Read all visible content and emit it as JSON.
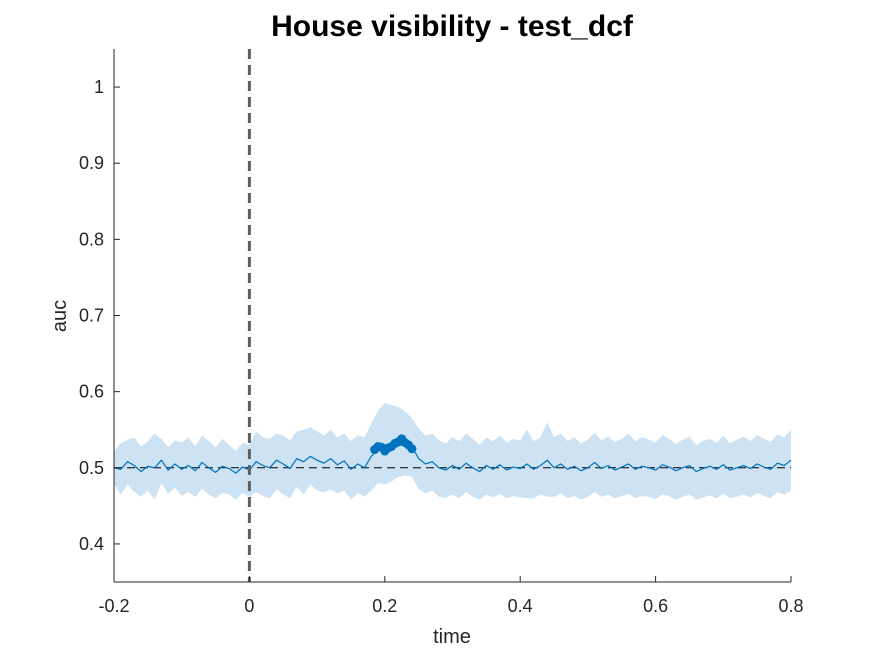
{
  "chart_data": {
    "type": "line",
    "title": "House visibility - test_dcf",
    "xlabel": "time",
    "ylabel": "auc",
    "xlim": [
      -0.2,
      0.8
    ],
    "ylim": [
      0.35,
      1.05
    ],
    "xticks": [
      -0.2,
      0,
      0.2,
      0.4,
      0.6,
      0.8
    ],
    "xtick_labels": [
      "-0.2",
      "0",
      "0.2",
      "0.4",
      "0.6",
      "0.8"
    ],
    "yticks": [
      0.4,
      0.5,
      0.6,
      0.7,
      0.8,
      0.9,
      1
    ],
    "ytick_labels": [
      "0.4",
      "0.5",
      "0.6",
      "0.7",
      "0.8",
      "0.9",
      "1"
    ],
    "grid": false,
    "chance_level": 0.5,
    "onset_time": 0,
    "colors": {
      "line": "#0072BD",
      "band": "#cde2f2",
      "onset": "#606060",
      "chance": "#000000",
      "axis": "#262626"
    },
    "series": [
      {
        "name": "auc mean",
        "x": [
          -0.2,
          -0.19,
          -0.18,
          -0.17,
          -0.16,
          -0.15,
          -0.14,
          -0.13,
          -0.12,
          -0.11,
          -0.1,
          -0.09,
          -0.08,
          -0.07,
          -0.06,
          -0.05,
          -0.04,
          -0.03,
          -0.02,
          -0.01,
          0,
          0.01,
          0.02,
          0.03,
          0.04,
          0.05,
          0.06,
          0.07,
          0.08,
          0.09,
          0.1,
          0.11,
          0.12,
          0.13,
          0.14,
          0.15,
          0.16,
          0.17,
          0.18,
          0.19,
          0.2,
          0.21,
          0.22,
          0.23,
          0.24,
          0.25,
          0.26,
          0.27,
          0.28,
          0.29,
          0.3,
          0.31,
          0.32,
          0.33,
          0.34,
          0.35,
          0.36,
          0.37,
          0.38,
          0.39,
          0.4,
          0.41,
          0.42,
          0.43,
          0.44,
          0.45,
          0.46,
          0.47,
          0.48,
          0.49,
          0.5,
          0.51,
          0.52,
          0.53,
          0.54,
          0.55,
          0.56,
          0.57,
          0.58,
          0.59,
          0.6,
          0.61,
          0.62,
          0.63,
          0.64,
          0.65,
          0.66,
          0.67,
          0.68,
          0.69,
          0.7,
          0.71,
          0.72,
          0.73,
          0.74,
          0.75,
          0.76,
          0.77,
          0.78,
          0.79,
          0.8
        ],
        "y": [
          0.5,
          0.498,
          0.508,
          0.503,
          0.495,
          0.502,
          0.5,
          0.51,
          0.497,
          0.505,
          0.498,
          0.503,
          0.496,
          0.507,
          0.5,
          0.494,
          0.502,
          0.499,
          0.493,
          0.501,
          0.497,
          0.508,
          0.503,
          0.5,
          0.51,
          0.505,
          0.499,
          0.512,
          0.508,
          0.515,
          0.51,
          0.506,
          0.512,
          0.504,
          0.509,
          0.498,
          0.505,
          0.5,
          0.515,
          0.525,
          0.528,
          0.53,
          0.535,
          0.532,
          0.528,
          0.512,
          0.505,
          0.508,
          0.5,
          0.497,
          0.503,
          0.498,
          0.506,
          0.5,
          0.495,
          0.503,
          0.498,
          0.504,
          0.497,
          0.501,
          0.499,
          0.505,
          0.498,
          0.503,
          0.51,
          0.5,
          0.505,
          0.498,
          0.502,
          0.496,
          0.5,
          0.507,
          0.499,
          0.503,
          0.497,
          0.501,
          0.505,
          0.498,
          0.502,
          0.5,
          0.497,
          0.504,
          0.501,
          0.496,
          0.5,
          0.503,
          0.495,
          0.499,
          0.502,
          0.498,
          0.504,
          0.497,
          0.5,
          0.503,
          0.499,
          0.505,
          0.501,
          0.498,
          0.506,
          0.503,
          0.51
        ]
      },
      {
        "name": "band upper",
        "x": [
          -0.2,
          -0.19,
          -0.18,
          -0.17,
          -0.16,
          -0.15,
          -0.14,
          -0.13,
          -0.12,
          -0.11,
          -0.1,
          -0.09,
          -0.08,
          -0.07,
          -0.06,
          -0.05,
          -0.04,
          -0.03,
          -0.02,
          -0.01,
          0,
          0.01,
          0.02,
          0.03,
          0.04,
          0.05,
          0.06,
          0.07,
          0.08,
          0.09,
          0.1,
          0.11,
          0.12,
          0.13,
          0.14,
          0.15,
          0.16,
          0.17,
          0.18,
          0.19,
          0.2,
          0.21,
          0.22,
          0.23,
          0.24,
          0.25,
          0.26,
          0.27,
          0.28,
          0.29,
          0.3,
          0.31,
          0.32,
          0.33,
          0.34,
          0.35,
          0.36,
          0.37,
          0.38,
          0.39,
          0.4,
          0.41,
          0.42,
          0.43,
          0.44,
          0.45,
          0.46,
          0.47,
          0.48,
          0.49,
          0.5,
          0.51,
          0.52,
          0.53,
          0.54,
          0.55,
          0.56,
          0.57,
          0.58,
          0.59,
          0.6,
          0.61,
          0.62,
          0.63,
          0.64,
          0.65,
          0.66,
          0.67,
          0.68,
          0.69,
          0.7,
          0.71,
          0.72,
          0.73,
          0.74,
          0.75,
          0.76,
          0.77,
          0.78,
          0.79,
          0.8
        ],
        "y": [
          0.522,
          0.532,
          0.537,
          0.54,
          0.528,
          0.535,
          0.545,
          0.538,
          0.527,
          0.536,
          0.533,
          0.54,
          0.528,
          0.542,
          0.535,
          0.527,
          0.538,
          0.53,
          0.522,
          0.533,
          0.53,
          0.548,
          0.54,
          0.538,
          0.545,
          0.542,
          0.536,
          0.548,
          0.55,
          0.553,
          0.548,
          0.542,
          0.55,
          0.54,
          0.545,
          0.535,
          0.543,
          0.54,
          0.558,
          0.575,
          0.585,
          0.582,
          0.58,
          0.574,
          0.565,
          0.552,
          0.542,
          0.545,
          0.536,
          0.532,
          0.54,
          0.535,
          0.545,
          0.538,
          0.53,
          0.54,
          0.535,
          0.542,
          0.533,
          0.538,
          0.536,
          0.55,
          0.535,
          0.54,
          0.56,
          0.54,
          0.545,
          0.535,
          0.54,
          0.532,
          0.537,
          0.546,
          0.536,
          0.541,
          0.534,
          0.538,
          0.545,
          0.535,
          0.54,
          0.537,
          0.533,
          0.543,
          0.538,
          0.531,
          0.537,
          0.541,
          0.53,
          0.535,
          0.538,
          0.533,
          0.542,
          0.532,
          0.537,
          0.541,
          0.535,
          0.543,
          0.538,
          0.534,
          0.544,
          0.54,
          0.55
        ]
      },
      {
        "name": "band lower",
        "x": [
          -0.2,
          -0.19,
          -0.18,
          -0.17,
          -0.16,
          -0.15,
          -0.14,
          -0.13,
          -0.12,
          -0.11,
          -0.1,
          -0.09,
          -0.08,
          -0.07,
          -0.06,
          -0.05,
          -0.04,
          -0.03,
          -0.02,
          -0.01,
          0,
          0.01,
          0.02,
          0.03,
          0.04,
          0.05,
          0.06,
          0.07,
          0.08,
          0.09,
          0.1,
          0.11,
          0.12,
          0.13,
          0.14,
          0.15,
          0.16,
          0.17,
          0.18,
          0.19,
          0.2,
          0.21,
          0.22,
          0.23,
          0.24,
          0.25,
          0.26,
          0.27,
          0.28,
          0.29,
          0.3,
          0.31,
          0.32,
          0.33,
          0.34,
          0.35,
          0.36,
          0.37,
          0.38,
          0.39,
          0.4,
          0.41,
          0.42,
          0.43,
          0.44,
          0.45,
          0.46,
          0.47,
          0.48,
          0.49,
          0.5,
          0.51,
          0.52,
          0.53,
          0.54,
          0.55,
          0.56,
          0.57,
          0.58,
          0.59,
          0.6,
          0.61,
          0.62,
          0.63,
          0.64,
          0.65,
          0.66,
          0.67,
          0.68,
          0.69,
          0.7,
          0.71,
          0.72,
          0.73,
          0.74,
          0.75,
          0.76,
          0.77,
          0.78,
          0.79,
          0.8
        ],
        "y": [
          0.478,
          0.465,
          0.478,
          0.468,
          0.462,
          0.47,
          0.458,
          0.48,
          0.466,
          0.474,
          0.463,
          0.468,
          0.462,
          0.472,
          0.465,
          0.46,
          0.467,
          0.465,
          0.458,
          0.467,
          0.462,
          0.468,
          0.463,
          0.46,
          0.472,
          0.465,
          0.46,
          0.475,
          0.465,
          0.478,
          0.47,
          0.468,
          0.472,
          0.466,
          0.47,
          0.458,
          0.467,
          0.462,
          0.47,
          0.48,
          0.478,
          0.482,
          0.488,
          0.49,
          0.488,
          0.472,
          0.466,
          0.47,
          0.462,
          0.46,
          0.465,
          0.46,
          0.468,
          0.462,
          0.458,
          0.465,
          0.461,
          0.466,
          0.46,
          0.463,
          0.461,
          0.46,
          0.46,
          0.465,
          0.462,
          0.462,
          0.467,
          0.46,
          0.463,
          0.458,
          0.462,
          0.468,
          0.462,
          0.465,
          0.46,
          0.463,
          0.466,
          0.46,
          0.463,
          0.462,
          0.459,
          0.465,
          0.463,
          0.458,
          0.462,
          0.465,
          0.458,
          0.461,
          0.464,
          0.46,
          0.466,
          0.46,
          0.462,
          0.465,
          0.461,
          0.467,
          0.463,
          0.46,
          0.468,
          0.465,
          0.47
        ]
      },
      {
        "name": "significant",
        "x": [
          0.185,
          0.19,
          0.195,
          0.2,
          0.205,
          0.21,
          0.215,
          0.22,
          0.225,
          0.23,
          0.235,
          0.24
        ],
        "y": [
          0.524,
          0.528,
          0.527,
          0.522,
          0.526,
          0.528,
          0.532,
          0.534,
          0.538,
          0.533,
          0.53,
          0.525
        ]
      }
    ]
  }
}
